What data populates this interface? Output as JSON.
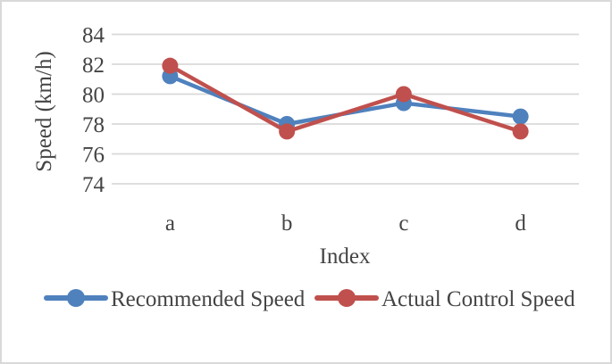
{
  "figure": {
    "background_color": "#ffffff",
    "border_color": "#d9d9d9",
    "text_color": "#444444"
  },
  "chart_data": {
    "type": "line",
    "title": "",
    "xlabel": "Index",
    "ylabel": "Speed (km/h)",
    "categories": [
      "a",
      "b",
      "c",
      "d"
    ],
    "series": [
      {
        "name": "Recommended Speed",
        "color": "#4F81BD",
        "values": [
          81.2,
          78.0,
          79.4,
          78.5
        ]
      },
      {
        "name": "Actual Control Speed",
        "color": "#C0504D",
        "values": [
          81.9,
          77.5,
          80.0,
          77.5
        ]
      }
    ],
    "ylim": [
      74,
      84
    ],
    "ytick_step": 2,
    "yticks": [
      84,
      82,
      80,
      78,
      76,
      74
    ],
    "grid": "horizontal-only",
    "gridline_color": "#d9d9d9",
    "axis_lines": "none",
    "marker": "circle",
    "legend_position": "bottom"
  }
}
